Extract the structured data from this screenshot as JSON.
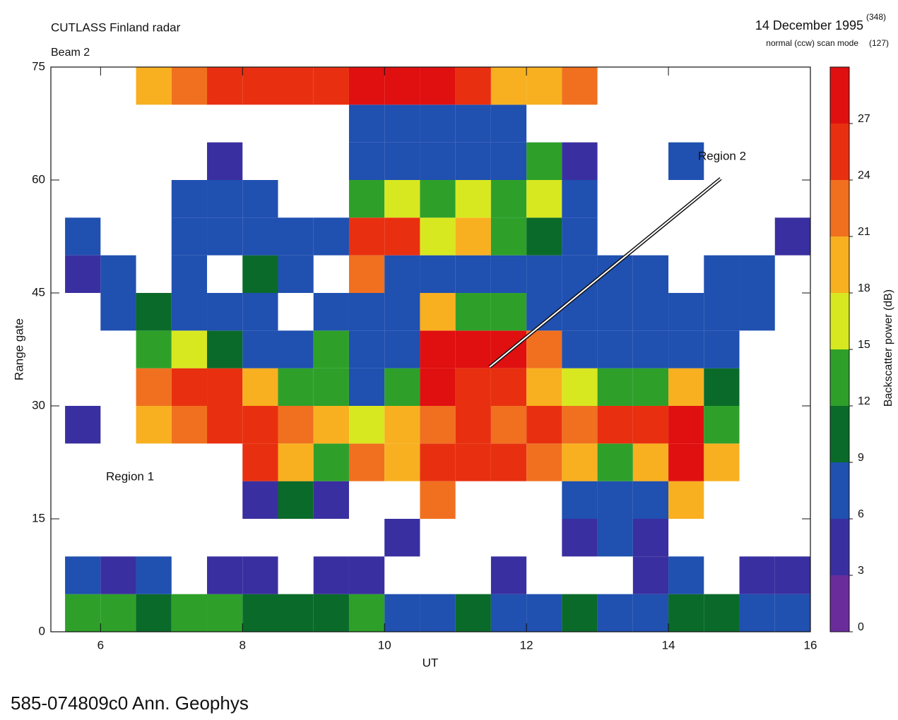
{
  "chart_data": {
    "type": "heatmap",
    "title": "CUTLASS Finland radar",
    "subtitle": "Beam 2",
    "date": "14 December 1995",
    "date_note": "(348)",
    "mode": "normal (ccw) scan mode",
    "mode_note": "(127)",
    "footer": "585-074809c0   Ann. Geophys",
    "xlabel": "UT",
    "ylabel": "Range gate",
    "annotations": [
      "Region 1",
      "Region 2"
    ],
    "xlim": [
      5.3,
      16
    ],
    "ylim": [
      0,
      75
    ],
    "xticks": [
      6,
      8,
      10,
      12,
      14,
      16
    ],
    "yticks": [
      0,
      15,
      30,
      45,
      60,
      75
    ],
    "x_edges": [
      5.5,
      6,
      6.5,
      7,
      7.5,
      8,
      8.5,
      9,
      9.5,
      10,
      10.5,
      11,
      11.5,
      12,
      12.5,
      13,
      13.5,
      14,
      14.5,
      15,
      15.5,
      16
    ],
    "y_edges": [
      0,
      5,
      10,
      15,
      20,
      25,
      30,
      35,
      40,
      45,
      50,
      55,
      60,
      65,
      70,
      75
    ],
    "values": [
      [
        12,
        14,
        10,
        13,
        12,
        11,
        10,
        9,
        12,
        8,
        6,
        10,
        8,
        6,
        9,
        8,
        7,
        10,
        9,
        8,
        6
      ],
      [
        6,
        5,
        8,
        null,
        5,
        4,
        null,
        5,
        4,
        null,
        null,
        null,
        5,
        null,
        null,
        null,
        4,
        6,
        null,
        5,
        4
      ],
      [
        null,
        null,
        null,
        null,
        null,
        null,
        null,
        null,
        null,
        5,
        null,
        null,
        null,
        null,
        5,
        6,
        5,
        null,
        null,
        null,
        null
      ],
      [
        null,
        null,
        null,
        null,
        null,
        5,
        10,
        5,
        null,
        null,
        22,
        null,
        null,
        null,
        6,
        6,
        7,
        18,
        null,
        null,
        null
      ],
      [
        null,
        null,
        null,
        null,
        null,
        24,
        20,
        14,
        22,
        20,
        24,
        26,
        24,
        22,
        20,
        12,
        20,
        27,
        20,
        null,
        null
      ],
      [
        4,
        null,
        20,
        22,
        25,
        26,
        22,
        18,
        15,
        18,
        22,
        24,
        23,
        25,
        22,
        24,
        26,
        27,
        12,
        null,
        null
      ],
      [
        null,
        null,
        22,
        26,
        24,
        18,
        14,
        12,
        8,
        12,
        27,
        24,
        26,
        20,
        16,
        12,
        14,
        18,
        10,
        null,
        null
      ],
      [
        null,
        null,
        14,
        16,
        10,
        8,
        6,
        12,
        6,
        8,
        27,
        27,
        27,
        22,
        8,
        6,
        6,
        8,
        6,
        null,
        null
      ],
      [
        null,
        8,
        10,
        6,
        6,
        6,
        null,
        6,
        6,
        6,
        20,
        14,
        12,
        8,
        6,
        6,
        6,
        8,
        8,
        6,
        null
      ],
      [
        5,
        6,
        null,
        6,
        null,
        10,
        6,
        null,
        22,
        8,
        6,
        6,
        6,
        6,
        6,
        6,
        6,
        null,
        6,
        8,
        null
      ],
      [
        6,
        null,
        null,
        6,
        8,
        6,
        8,
        6,
        24,
        24,
        16,
        20,
        14,
        10,
        6,
        null,
        null,
        null,
        null,
        null,
        5
      ],
      [
        null,
        null,
        null,
        6,
        8,
        6,
        null,
        null,
        14,
        16,
        14,
        16,
        12,
        16,
        6,
        null,
        null,
        null,
        null,
        null,
        null
      ],
      [
        null,
        null,
        null,
        null,
        5,
        null,
        null,
        null,
        6,
        6,
        8,
        6,
        8,
        12,
        4,
        null,
        null,
        6,
        null,
        null,
        null
      ],
      [
        null,
        null,
        null,
        null,
        null,
        null,
        null,
        null,
        6,
        6,
        6,
        6,
        6,
        null,
        null,
        null,
        null,
        null,
        null,
        null,
        null
      ],
      [
        null,
        null,
        18,
        22,
        24,
        24,
        26,
        24,
        27,
        27,
        27,
        24,
        18,
        20,
        22,
        null,
        null,
        null,
        null,
        null,
        null
      ]
    ],
    "colorbar": {
      "label": "Backscatter power (dB)",
      "lim": [
        0,
        30
      ],
      "ticks": [
        0,
        3,
        6,
        9,
        12,
        15,
        18,
        21,
        24,
        27
      ],
      "colors": [
        "#6a2c9a",
        "#3a2fa0",
        "#2050b0",
        "#0a6a2a",
        "#2ea02a",
        "#d8e820",
        "#f8b020",
        "#f07020",
        "#e83010",
        "#e01010"
      ]
    }
  }
}
